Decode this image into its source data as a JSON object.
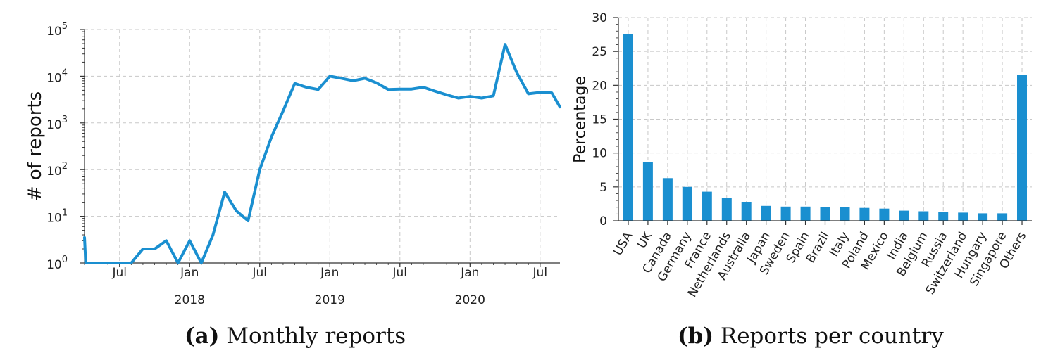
{
  "colors": {
    "accent": "#1a8fd0",
    "grid": "#c8c8c8",
    "axis": "#333333"
  },
  "chart_data": [
    {
      "type": "line",
      "caption_label": "(a)",
      "caption_text": "Monthly reports",
      "ylabel": "# of reports",
      "yscale": "log",
      "ylim": [
        1,
        100000
      ],
      "yticks": [
        {
          "base": "10",
          "exp": "0",
          "value": 1
        },
        {
          "base": "10",
          "exp": "1",
          "value": 10
        },
        {
          "base": "10",
          "exp": "2",
          "value": 100
        },
        {
          "base": "10",
          "exp": "3",
          "value": 1000
        },
        {
          "base": "10",
          "exp": "4",
          "value": 10000
        },
        {
          "base": "10",
          "exp": "5",
          "value": 100000
        }
      ],
      "xlim": [
        0,
        40.7
      ],
      "xticks": [
        {
          "month_index": 3,
          "label": "Jul",
          "year": ""
        },
        {
          "month_index": 9,
          "label": "Jan",
          "year": "2018"
        },
        {
          "month_index": 15,
          "label": "Jul",
          "year": ""
        },
        {
          "month_index": 21,
          "label": "Jan",
          "year": "2019"
        },
        {
          "month_index": 27,
          "label": "Jul",
          "year": ""
        },
        {
          "month_index": 33,
          "label": "Jan",
          "year": "2020"
        },
        {
          "month_index": 39,
          "label": "Jul",
          "year": ""
        }
      ],
      "series": [
        {
          "name": "Monthly reports",
          "x": [
            0,
            0.1,
            1,
            2,
            3,
            4,
            5,
            6,
            7,
            8,
            9,
            10,
            11,
            12,
            13,
            14,
            15,
            16,
            17,
            18,
            19,
            20,
            21,
            22,
            23,
            24,
            25,
            26,
            27,
            28,
            29,
            30,
            31,
            32,
            33,
            34,
            35,
            36,
            37,
            38,
            39,
            40,
            40.7
          ],
          "values": [
            3.5,
            0.8,
            0.8,
            0.8,
            0.8,
            1,
            2,
            2,
            3,
            1,
            3,
            1,
            4,
            33,
            13,
            8,
            100,
            500,
            1800,
            7000,
            5800,
            5200,
            10000,
            9000,
            8000,
            9000,
            7200,
            5200,
            5300,
            5300,
            5800,
            4800,
            4000,
            3400,
            3700,
            3400,
            3800,
            48000,
            12000,
            4200,
            4500,
            4400,
            2200
          ]
        }
      ]
    },
    {
      "type": "bar",
      "caption_label": "(b)",
      "caption_text": "Reports per country",
      "ylabel": "Percentage",
      "ylim": [
        0,
        30
      ],
      "yticks": [
        0,
        5,
        10,
        15,
        20,
        25,
        30
      ],
      "categories": [
        "USA",
        "UK",
        "Canada",
        "Germany",
        "France",
        "Netherlands",
        "Australia",
        "Japan",
        "Sweden",
        "Spain",
        "Brazil",
        "Italy",
        "Poland",
        "Mexico",
        "India",
        "Belgium",
        "Russia",
        "Switzerland",
        "Hungary",
        "Singapore",
        "Others"
      ],
      "values": [
        27.6,
        8.7,
        6.3,
        5.0,
        4.3,
        3.4,
        2.8,
        2.2,
        2.1,
        2.1,
        2.0,
        2.0,
        1.9,
        1.8,
        1.5,
        1.4,
        1.3,
        1.2,
        1.1,
        1.1,
        21.5
      ]
    }
  ]
}
